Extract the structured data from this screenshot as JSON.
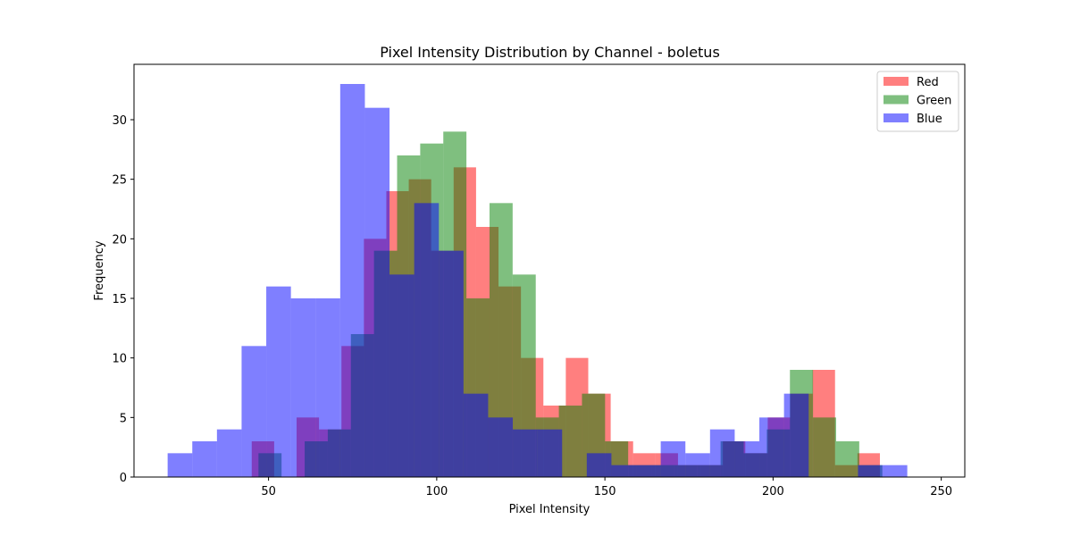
{
  "chart_data": {
    "type": "histogram",
    "title": "Pixel Intensity Distribution by Channel - boletus",
    "xlabel": "Pixel Intensity",
    "ylabel": "Frequency",
    "xlim": [
      10,
      257
    ],
    "ylim": [
      0,
      34.65
    ],
    "x_ticks": [
      50,
      100,
      150,
      200,
      250
    ],
    "y_ticks": [
      0,
      5,
      10,
      15,
      20,
      25,
      30
    ],
    "grid": false,
    "legend_position": "top-right",
    "alpha": 0.5,
    "series": [
      {
        "name": "Red",
        "color": "#ff0000",
        "bin_start": 45,
        "bin_width": 6.67,
        "counts": [
          3,
          0,
          5,
          4,
          11,
          20,
          24,
          25,
          19,
          26,
          21,
          16,
          10,
          6,
          10,
          7,
          3,
          2,
          2,
          1,
          1,
          3,
          2,
          5,
          7,
          9,
          1,
          2
        ]
      },
      {
        "name": "Green",
        "color": "#008000",
        "bin_start": 47,
        "bin_width": 6.87,
        "counts": [
          2,
          0,
          3,
          4,
          12,
          19,
          27,
          28,
          29,
          15,
          23,
          17,
          5,
          6,
          7,
          3,
          1,
          1,
          1,
          1,
          3,
          2,
          4,
          9,
          5,
          3,
          1
        ]
      },
      {
        "name": "Blue",
        "color": "#0000ff",
        "bin_start": 20,
        "bin_width": 7.33,
        "counts": [
          2,
          3,
          4,
          11,
          16,
          15,
          15,
          33,
          31,
          17,
          23,
          19,
          7,
          5,
          4,
          4,
          0,
          2,
          1,
          1,
          3,
          2,
          4,
          3,
          5,
          7,
          0,
          0,
          1,
          1
        ]
      }
    ]
  }
}
